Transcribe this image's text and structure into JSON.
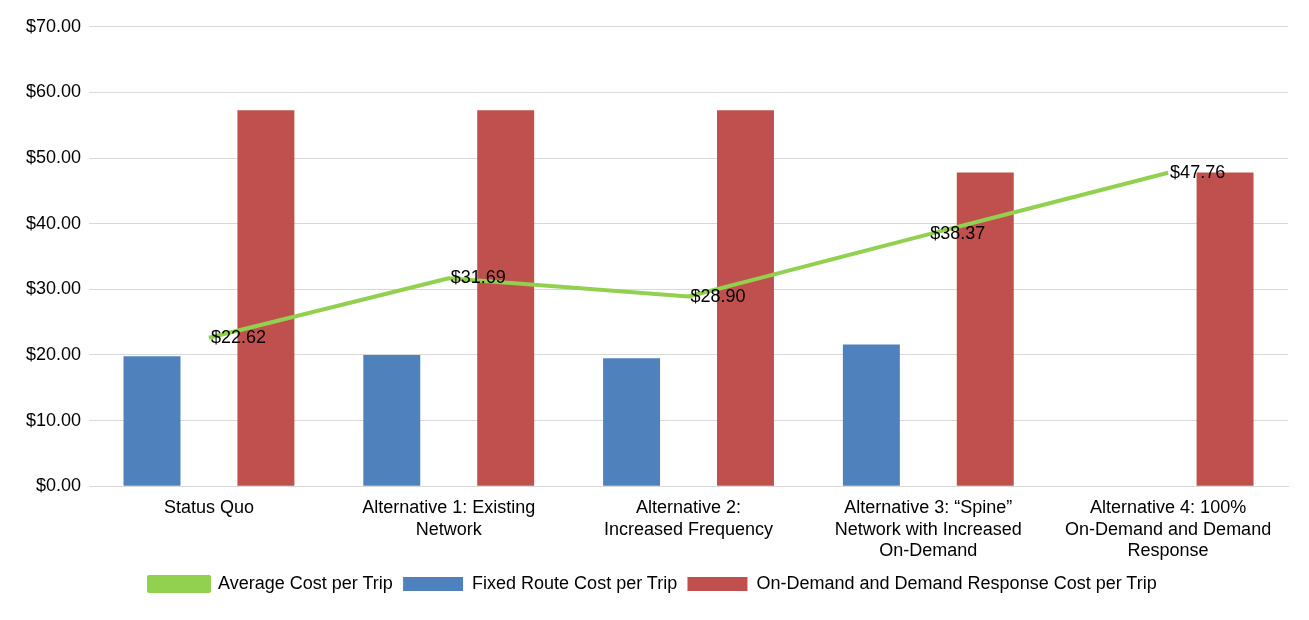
{
  "chart_data": {
    "type": "bar",
    "categories": [
      "Status Quo",
      "Alternative 1: Existing Network",
      "Alternative 2: Increased Frequency",
      "Alternative 3: “Spine” Network with Increased On-Demand",
      "Alternative 4: 100% On-Demand and Demand Response"
    ],
    "series": [
      {
        "name": "Fixed Route Cost per Trip",
        "color": "#4f81bd",
        "values": [
          19.8,
          20.0,
          19.5,
          21.6,
          null
        ]
      },
      {
        "name": "On-Demand and Demand Response Cost per Trip",
        "color": "#c0504d",
        "values": [
          57.3,
          57.3,
          57.3,
          47.8,
          47.8
        ]
      },
      {
        "name": "Average Cost per Trip",
        "type": "line",
        "color": "#92d050",
        "values": [
          22.62,
          31.69,
          28.9,
          38.37,
          47.76
        ],
        "value_labels": [
          "$22.62",
          "$31.69",
          "$28.90",
          "$38.37",
          "$47.76"
        ]
      }
    ],
    "ylim": [
      0,
      70
    ],
    "yticks": [
      {
        "value": 0,
        "label": "$0.00"
      },
      {
        "value": 10,
        "label": "$10.00"
      },
      {
        "value": 20,
        "label": "$20.00"
      },
      {
        "value": 30,
        "label": "$30.00"
      },
      {
        "value": 40,
        "label": "$40.00"
      },
      {
        "value": 50,
        "label": "$50.00"
      },
      {
        "value": 60,
        "label": "$60.00"
      },
      {
        "value": 70,
        "label": "$70.00"
      }
    ],
    "grid": "y",
    "legend": "bottom",
    "marker": "none"
  }
}
